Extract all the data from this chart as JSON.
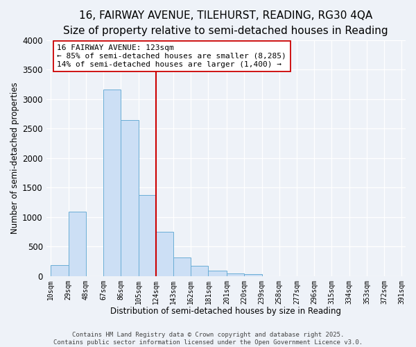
{
  "title": "16, FAIRWAY AVENUE, TILEHURST, READING, RG30 4QA",
  "subtitle": "Size of property relative to semi-detached houses in Reading",
  "xlabel": "Distribution of semi-detached houses by size in Reading",
  "ylabel": "Number of semi-detached properties",
  "bar_lefts": [
    10,
    29,
    48,
    67,
    86,
    105,
    124,
    143,
    162,
    181,
    201,
    220,
    239,
    258,
    277,
    296,
    315,
    334,
    353,
    372
  ],
  "bar_rights": [
    29,
    48,
    67,
    86,
    105,
    124,
    143,
    162,
    181,
    201,
    220,
    239,
    258,
    277,
    296,
    315,
    334,
    353,
    372,
    391
  ],
  "bar_heights": [
    190,
    1095,
    0,
    3155,
    2645,
    1370,
    750,
    310,
    175,
    95,
    40,
    30,
    0,
    0,
    0,
    0,
    0,
    0,
    0,
    0
  ],
  "bar_color": "#ccdff5",
  "bar_edgecolor": "#6aadd5",
  "vline_x": 124,
  "vline_color": "#cc0000",
  "annotation_text": "16 FAIRWAY AVENUE: 123sqm\n← 85% of semi-detached houses are smaller (8,285)\n14% of semi-detached houses are larger (1,400) →",
  "ylim": [
    0,
    4000
  ],
  "xlim_left": 5,
  "xlim_right": 395,
  "tick_labels": [
    "10sqm",
    "29sqm",
    "48sqm",
    "67sqm",
    "86sqm",
    "105sqm",
    "124sqm",
    "143sqm",
    "162sqm",
    "181sqm",
    "201sqm",
    "220sqm",
    "239sqm",
    "258sqm",
    "277sqm",
    "296sqm",
    "315sqm",
    "334sqm",
    "353sqm",
    "372sqm",
    "391sqm"
  ],
  "tick_positions": [
    10,
    29,
    48,
    67,
    86,
    105,
    124,
    143,
    162,
    181,
    201,
    220,
    239,
    258,
    277,
    296,
    315,
    334,
    353,
    372,
    391
  ],
  "footer_line1": "Contains HM Land Registry data © Crown copyright and database right 2025.",
  "footer_line2": "Contains public sector information licensed under the Open Government Licence v3.0.",
  "bg_color": "#eef2f8",
  "title_fontsize": 11,
  "subtitle_fontsize": 9.5,
  "axis_label_fontsize": 8.5,
  "tick_fontsize": 7,
  "footer_fontsize": 6.5,
  "ytick_fontsize": 8.5,
  "annotation_fontsize": 8
}
